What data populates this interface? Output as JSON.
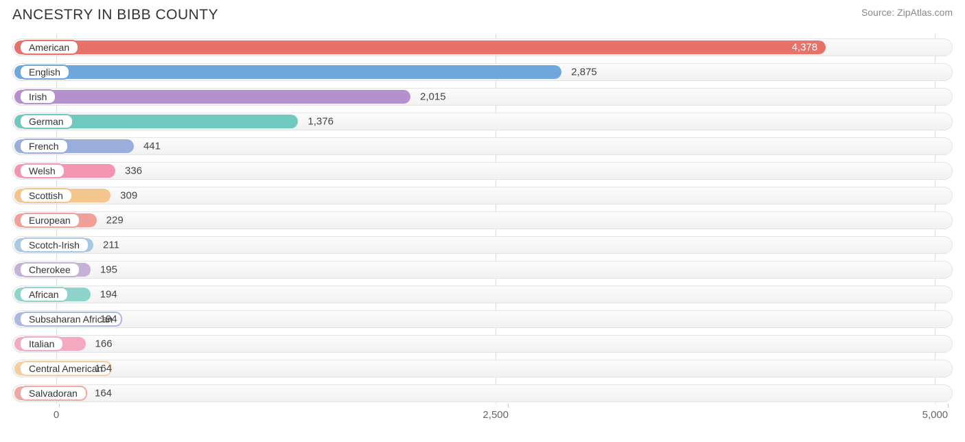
{
  "title": "ANCESTRY IN BIBB COUNTY",
  "source": "Source: ZipAtlas.com",
  "chart": {
    "type": "bar-horizontal",
    "xlim": [
      -250,
      5100
    ],
    "ticks": [
      {
        "value": 0,
        "label": "0"
      },
      {
        "value": 2500,
        "label": "2,500"
      },
      {
        "value": 5000,
        "label": "5,000"
      }
    ],
    "track_bg_top": "#fbfbfb",
    "track_bg_bottom": "#f2f2f2",
    "track_border": "#e4e4e4",
    "grid_color": "#dddddd",
    "text_color": "#333333",
    "pill_bg": "#ffffff",
    "label_fontsize": 14,
    "value_fontsize": 15,
    "bars": [
      {
        "label": "American",
        "value": 4378,
        "display": "4,378",
        "color": "#e8716a",
        "value_inside": true,
        "value_color": "#ffffff"
      },
      {
        "label": "English",
        "value": 2875,
        "display": "2,875",
        "color": "#6fa6db",
        "value_inside": false,
        "value_color": "#444444"
      },
      {
        "label": "Irish",
        "value": 2015,
        "display": "2,015",
        "color": "#b491cc",
        "value_inside": false,
        "value_color": "#444444"
      },
      {
        "label": "German",
        "value": 1376,
        "display": "1,376",
        "color": "#6fc9be",
        "value_inside": false,
        "value_color": "#444444"
      },
      {
        "label": "French",
        "value": 441,
        "display": "441",
        "color": "#9aaedb",
        "value_inside": false,
        "value_color": "#444444"
      },
      {
        "label": "Welsh",
        "value": 336,
        "display": "336",
        "color": "#f394b0",
        "value_inside": false,
        "value_color": "#444444"
      },
      {
        "label": "Scottish",
        "value": 309,
        "display": "309",
        "color": "#f5c58e",
        "value_inside": false,
        "value_color": "#444444"
      },
      {
        "label": "European",
        "value": 229,
        "display": "229",
        "color": "#f0a099",
        "value_inside": false,
        "value_color": "#444444"
      },
      {
        "label": "Scotch-Irish",
        "value": 211,
        "display": "211",
        "color": "#a9c8e4",
        "value_inside": false,
        "value_color": "#444444"
      },
      {
        "label": "Cherokee",
        "value": 195,
        "display": "195",
        "color": "#c5b0d8",
        "value_inside": false,
        "value_color": "#444444"
      },
      {
        "label": "African",
        "value": 194,
        "display": "194",
        "color": "#8fd4cb",
        "value_inside": false,
        "value_color": "#444444"
      },
      {
        "label": "Subsaharan African",
        "value": 194,
        "display": "194",
        "color": "#a9b9e0",
        "value_inside": false,
        "value_color": "#444444"
      },
      {
        "label": "Italian",
        "value": 166,
        "display": "166",
        "color": "#f5a9c0",
        "value_inside": false,
        "value_color": "#444444"
      },
      {
        "label": "Central American",
        "value": 164,
        "display": "164",
        "color": "#f5ce9f",
        "value_inside": false,
        "value_color": "#444444"
      },
      {
        "label": "Salvadoran",
        "value": 164,
        "display": "164",
        "color": "#f0a8a2",
        "value_inside": false,
        "value_color": "#444444"
      }
    ]
  }
}
